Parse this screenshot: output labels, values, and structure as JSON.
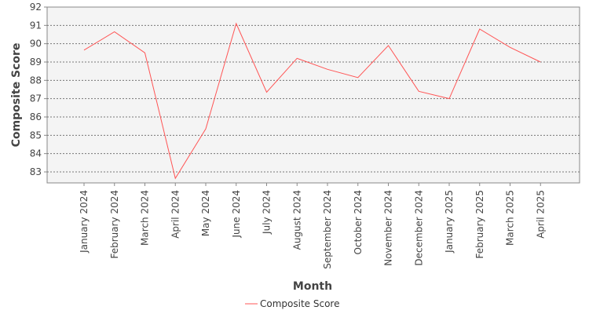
{
  "chart_data": {
    "type": "line",
    "title": "",
    "xlabel": "Month",
    "ylabel": "Composite Score",
    "categories": [
      "January 2024",
      "February 2024",
      "March 2024",
      "April 2024",
      "May 2024",
      "June 2024",
      "July 2024",
      "August 2024",
      "September 2024",
      "October 2024",
      "November 2024",
      "December 2024",
      "January 2025",
      "February 2025",
      "March 2025",
      "April 2025"
    ],
    "series": [
      {
        "name": "Composite Score",
        "color": "#ff5555",
        "values": [
          89.65,
          90.65,
          89.5,
          82.65,
          85.35,
          91.1,
          87.35,
          89.2,
          88.6,
          88.15,
          89.9,
          87.4,
          87.0,
          90.8,
          89.8,
          89.0
        ]
      }
    ],
    "ylim": [
      82.4,
      92
    ],
    "yticks": [
      83,
      84,
      85,
      86,
      87,
      88,
      89,
      90,
      91,
      92
    ],
    "grid": true,
    "legend": "bottom-center"
  }
}
